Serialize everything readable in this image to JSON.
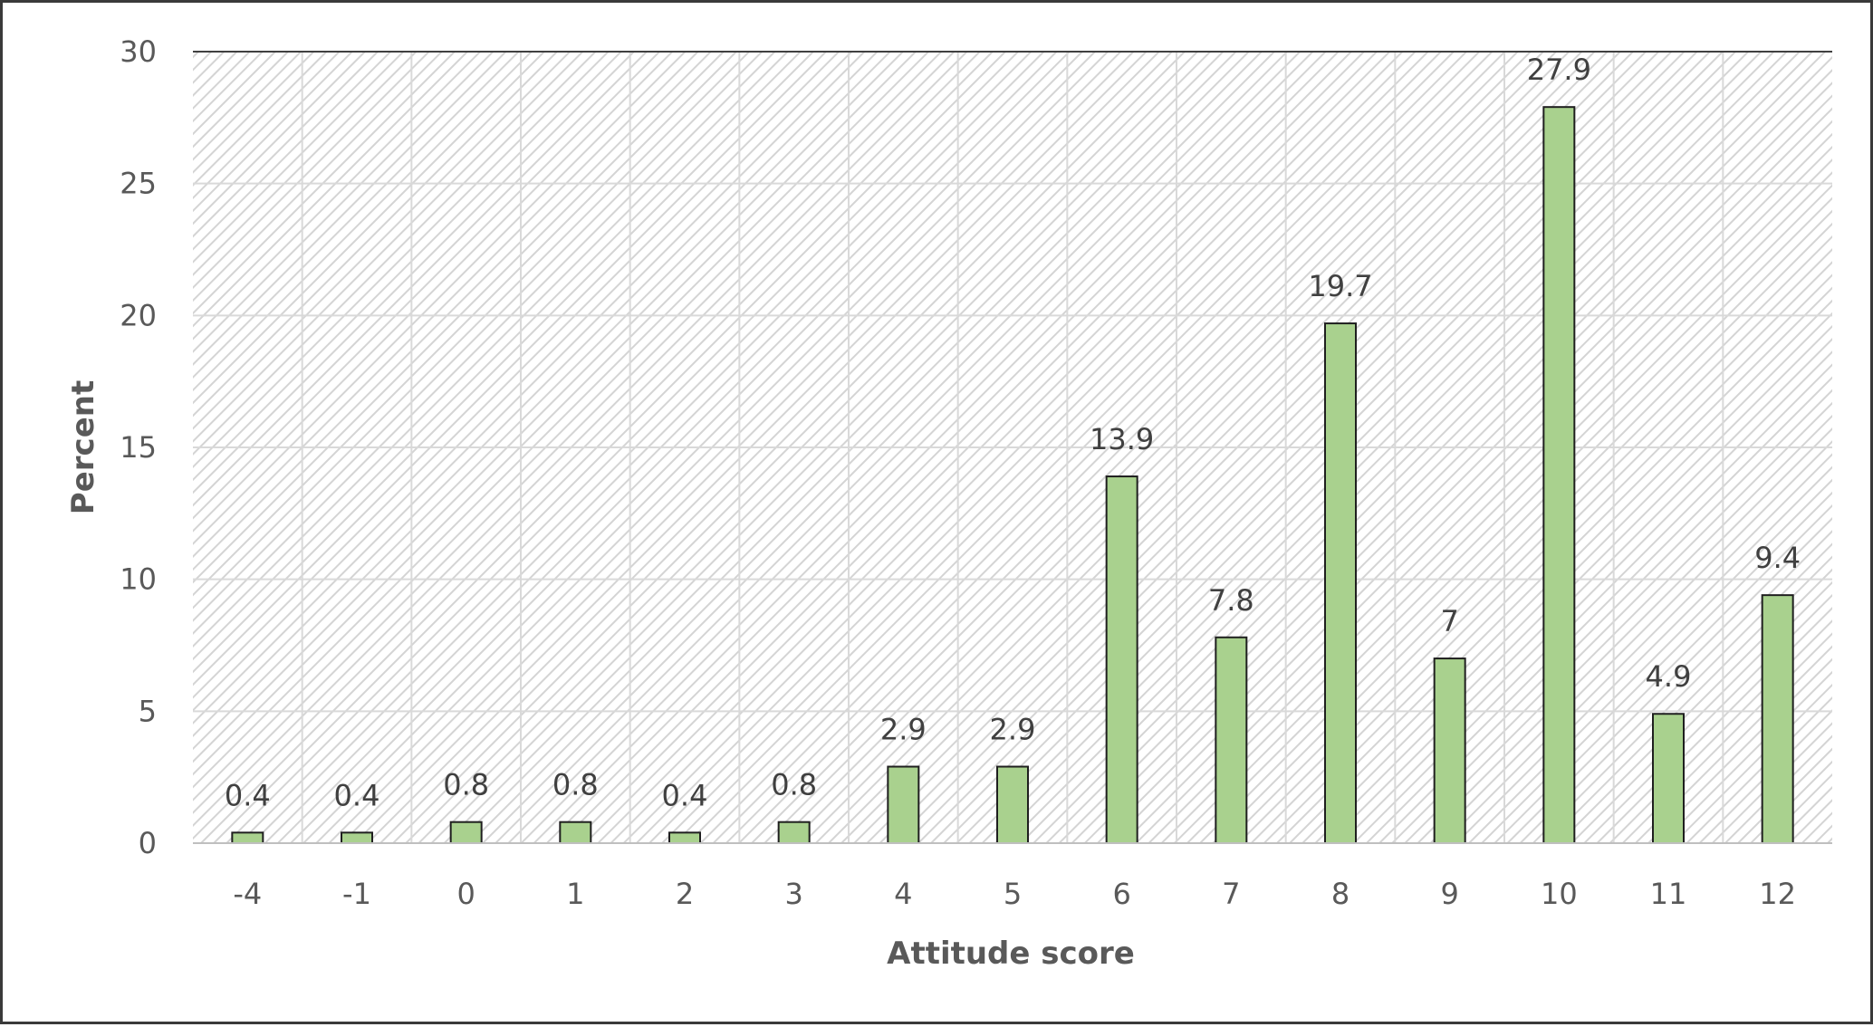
{
  "chart_data": {
    "type": "bar",
    "xlabel": "Attitude score",
    "ylabel": "Percent",
    "categories": [
      "-4",
      "-1",
      "0",
      "1",
      "2",
      "3",
      "4",
      "5",
      "6",
      "7",
      "8",
      "9",
      "10",
      "11",
      "12"
    ],
    "values": [
      0.4,
      0.4,
      0.8,
      0.8,
      0.4,
      0.8,
      2.9,
      2.9,
      13.9,
      7.8,
      19.7,
      7,
      27.9,
      4.9,
      9.4
    ],
    "ylim": [
      0,
      30
    ],
    "yticks": [
      0,
      5,
      10,
      15,
      20,
      25,
      30
    ],
    "grid": true,
    "legend": "none",
    "bar_color": "#a9d18e",
    "bar_edge_color": "#1f1f1f",
    "plot_background": "hatched light gray",
    "gridline_color": "#d9d9d9"
  }
}
